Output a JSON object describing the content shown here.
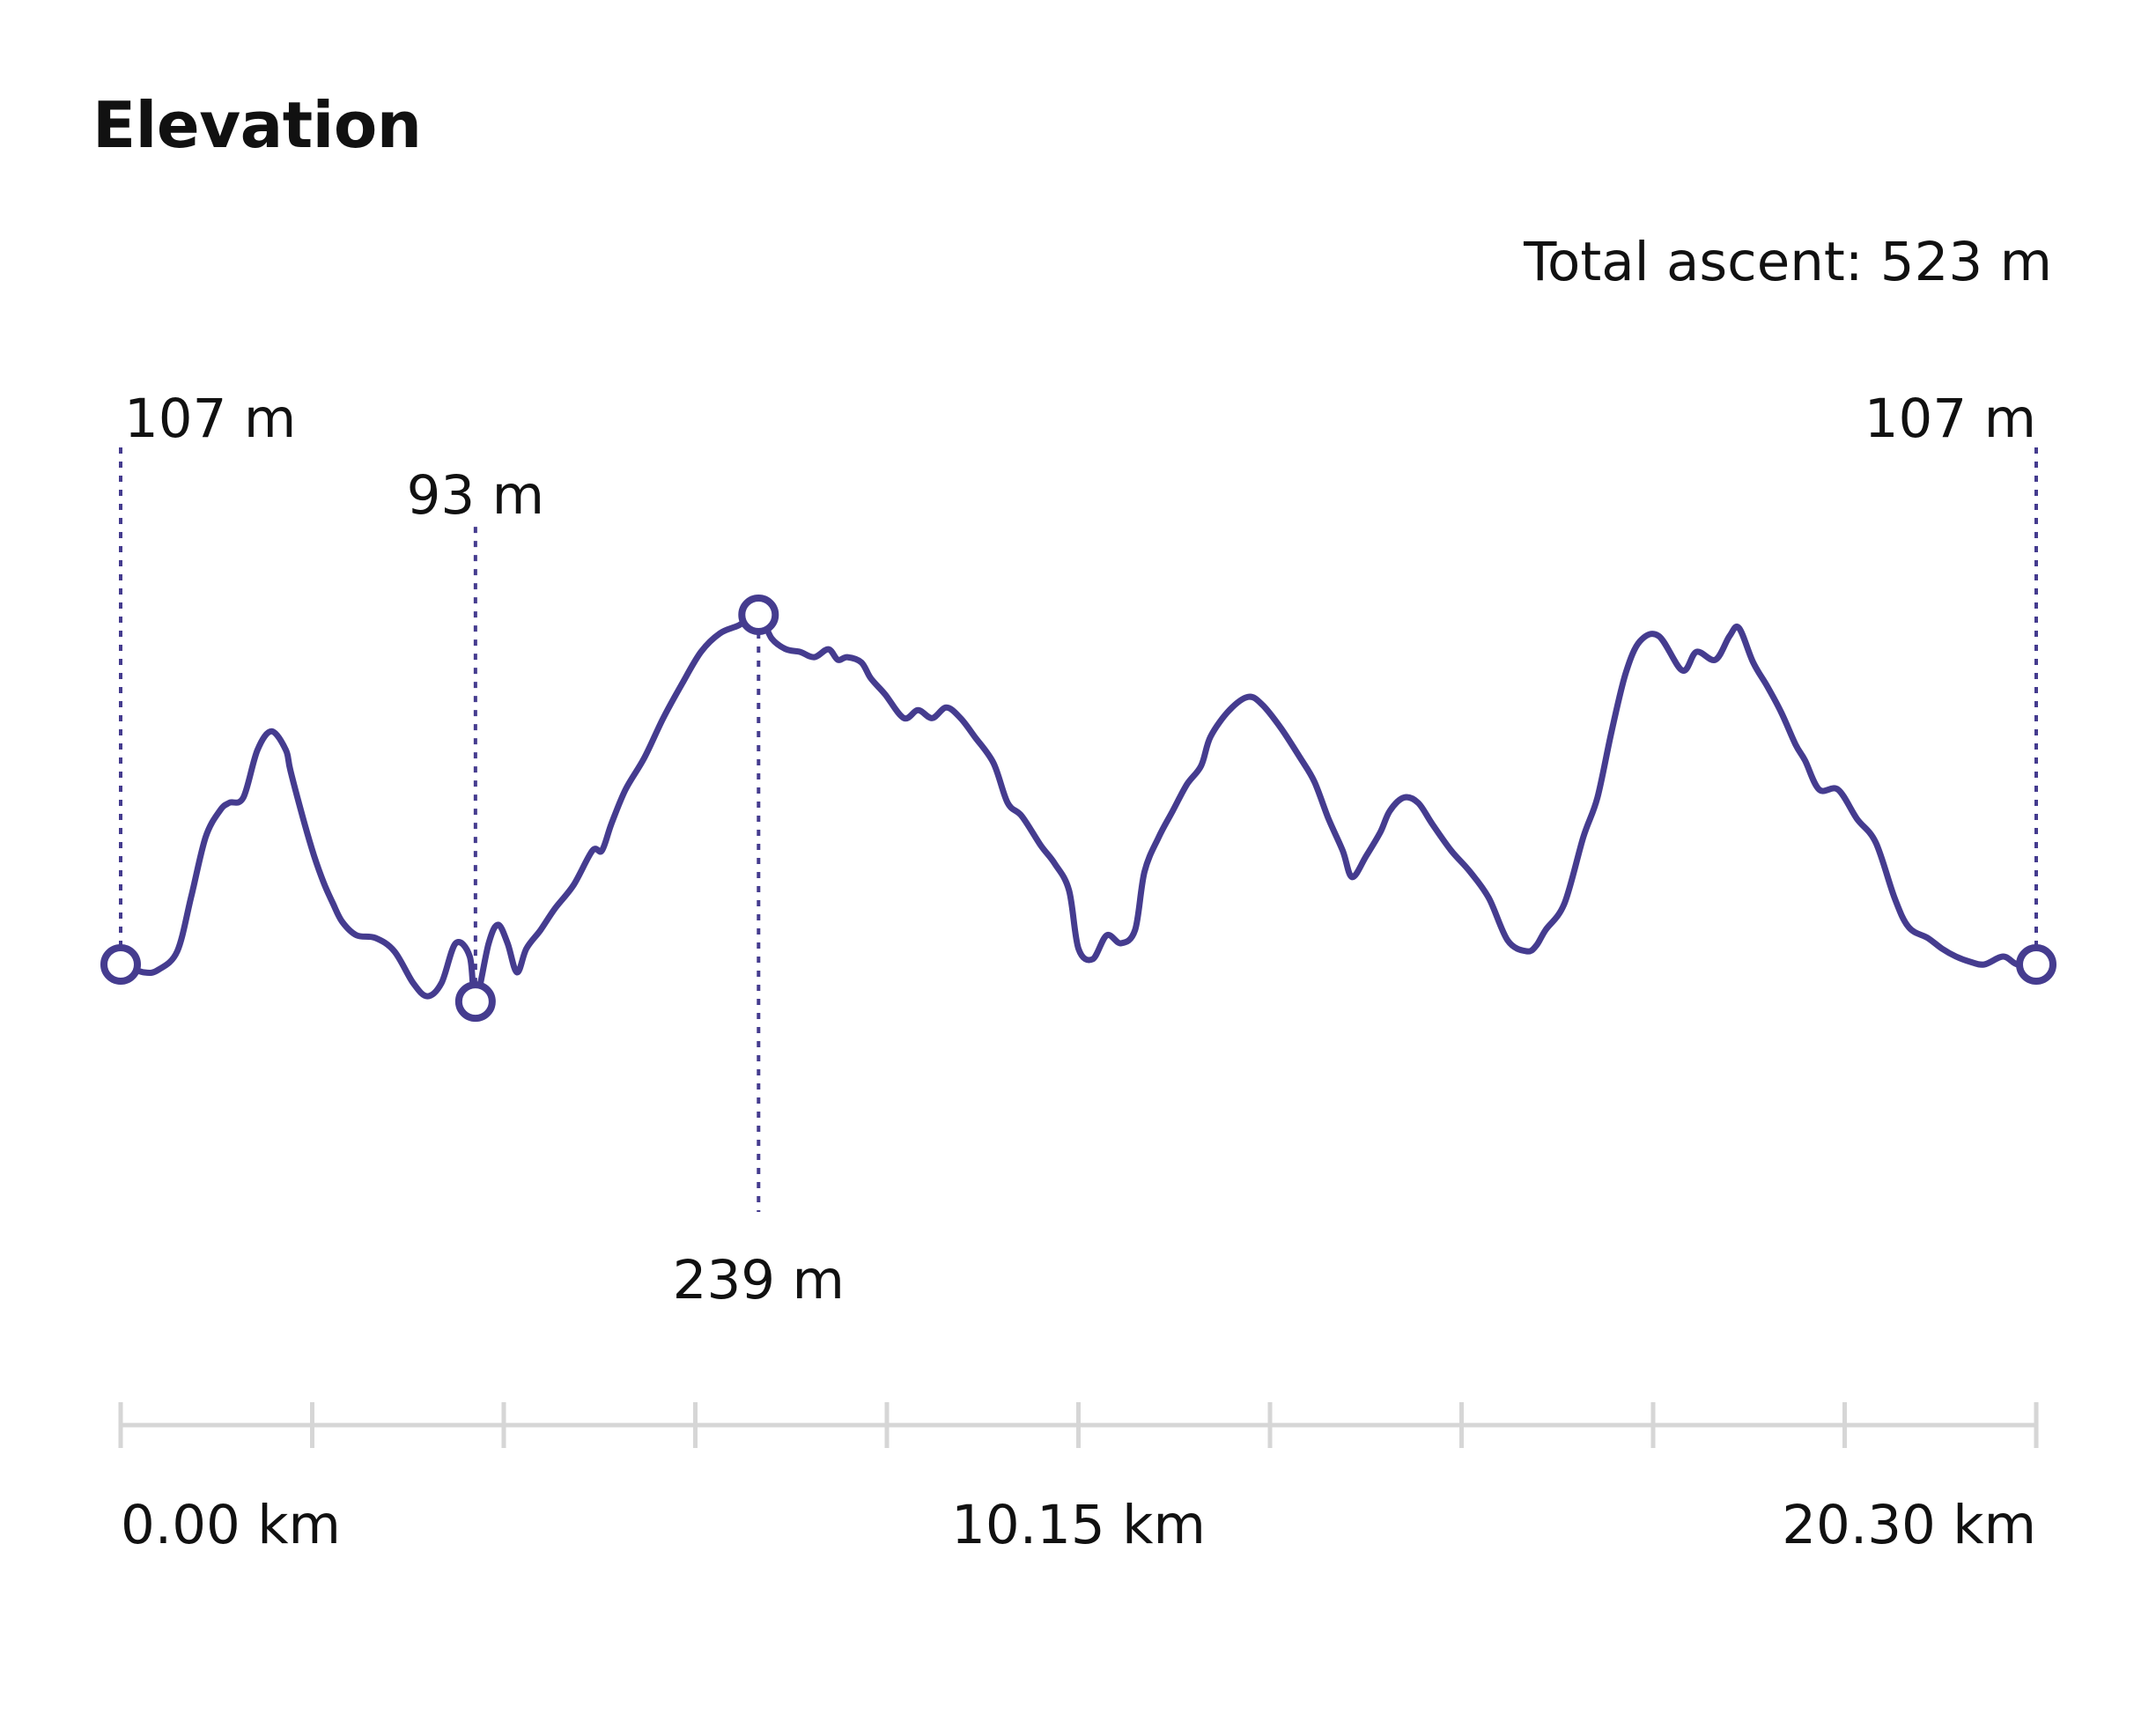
{
  "header": {
    "title": "Elevation",
    "total_ascent_label": "Total ascent: 523 m"
  },
  "colors": {
    "line": "#453c8f",
    "axis": "#d6d6d6",
    "text": "#111111",
    "marker_fill": "#ffffff"
  },
  "chart_data": {
    "type": "line",
    "title": "Elevation",
    "xlabel": "",
    "ylabel": "",
    "x_unit": "km",
    "y_unit": "m",
    "xlim": [
      0,
      20.3
    ],
    "ylim": [
      50,
      300
    ],
    "grid": false,
    "x_tick_count": 11,
    "x_tick_labels": [
      {
        "x": 0,
        "label": "0.00 km"
      },
      {
        "x": 10.15,
        "label": "10.15 km"
      },
      {
        "x": 20.3,
        "label": "20.30 km"
      }
    ],
    "summary": {
      "total_ascent": "Total ascent: 523 m"
    },
    "markers": [
      {
        "name": "start",
        "x": 0.0,
        "y": 107,
        "label": "107 m",
        "label_position": "above"
      },
      {
        "name": "min",
        "x": 3.76,
        "y": 93,
        "label": "93 m",
        "label_position": "above"
      },
      {
        "name": "max",
        "x": 6.76,
        "y": 239,
        "label": "239 m",
        "label_position": "below"
      },
      {
        "name": "end",
        "x": 20.3,
        "y": 107,
        "label": "107 m",
        "label_position": "above"
      }
    ],
    "series": [
      {
        "x": [
          0.0,
          0.25,
          0.4,
          0.6,
          0.75,
          0.9,
          1.05,
          1.15,
          1.3,
          1.45,
          1.6,
          1.75,
          1.8,
          1.95,
          2.05,
          2.15,
          2.25,
          2.35,
          2.5,
          2.7,
          2.9,
          3.1,
          3.25,
          3.4,
          3.55,
          3.7,
          3.76,
          3.9,
          4.0,
          4.1,
          4.2,
          4.3,
          4.45,
          4.6,
          4.8,
          5.0,
          5.1,
          5.2,
          5.35,
          5.55,
          5.75,
          5.95,
          6.15,
          6.35,
          6.55,
          6.76,
          6.9,
          7.05,
          7.2,
          7.35,
          7.5,
          7.6,
          7.7,
          7.85,
          7.95,
          8.1,
          8.3,
          8.45,
          8.6,
          8.75,
          8.9,
          9.05,
          9.25,
          9.4,
          9.55,
          9.75,
          9.9,
          10.05,
          10.15,
          10.3,
          10.45,
          10.6,
          10.75,
          10.85,
          11.0,
          11.15,
          11.3,
          11.45,
          11.55,
          11.75,
          11.95,
          12.1,
          12.3,
          12.5,
          12.65,
          12.8,
          12.95,
          13.05,
          13.2,
          13.35,
          13.45,
          13.6,
          13.75,
          13.9,
          14.1,
          14.3,
          14.5,
          14.7,
          14.9,
          15.0,
          15.1,
          15.3,
          15.5,
          15.65,
          15.8,
          15.95,
          16.1,
          16.3,
          16.55,
          16.7,
          16.9,
          17.05,
          17.15,
          17.3,
          17.45,
          17.6,
          17.75,
          17.85,
          18.0,
          18.2,
          18.4,
          18.6,
          18.8,
          18.95,
          19.15,
          19.3,
          19.45,
          19.6,
          19.75,
          19.95,
          20.1,
          20.3
        ],
        "y": [
          107,
          104,
          105,
          112,
          133,
          155,
          165,
          168,
          170,
          188,
          195,
          188,
          180,
          160,
          148,
          138,
          130,
          123,
          118,
          117,
          112,
          100,
          95,
          100,
          115,
          110,
          93,
          115,
          122,
          115,
          104,
          113,
          120,
          128,
          137,
          150,
          150,
          160,
          173,
          185,
          200,
          213,
          225,
          232,
          235,
          239,
          230,
          226,
          225,
          223,
          226,
          222,
          223,
          221,
          215,
          209,
          200,
          203,
          200,
          204,
          200,
          193,
          183,
          168,
          163,
          152,
          145,
          135,
          113,
          109,
          118,
          115,
          120,
          142,
          155,
          165,
          175,
          182,
          193,
          203,
          208,
          205,
          196,
          185,
          176,
          162,
          150,
          140,
          148,
          157,
          165,
          170,
          168,
          160,
          150,
          142,
          132,
          116,
          112,
          114,
          120,
          130,
          155,
          170,
          195,
          217,
          229,
          231,
          218,
          225,
          222,
          231,
          234,
          221,
          212,
          202,
          190,
          184,
          173,
          173,
          162,
          153,
          132,
          121,
          117,
          113,
          110,
          108,
          107,
          110,
          107,
          107
        ]
      }
    ]
  }
}
